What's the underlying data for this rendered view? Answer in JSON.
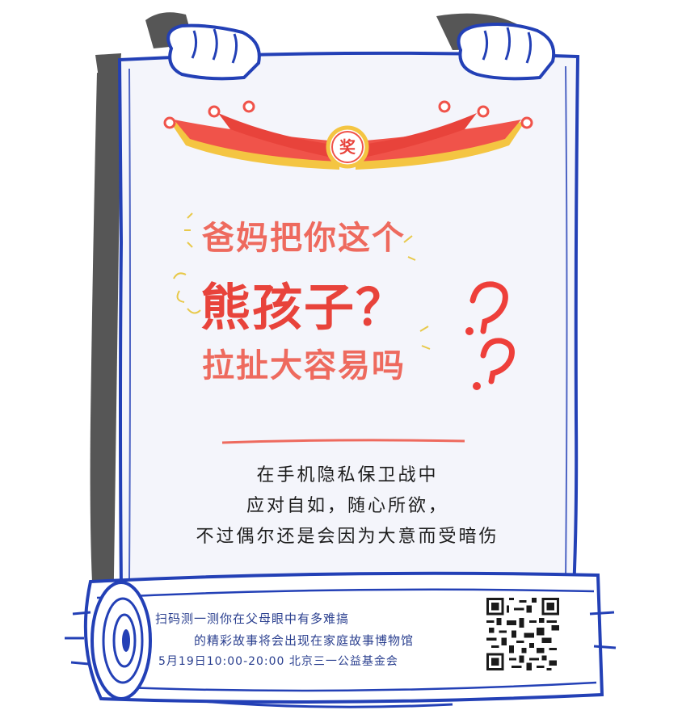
{
  "theme": {
    "accent": "#ee6a5e",
    "ribbon": "#f0534a",
    "ribbon_edge": "#f4c542",
    "frame": "#2340b6",
    "shadow": "#555555",
    "paper": "#f4f5fb",
    "body_text": "#1d1d1d",
    "footer_text": "#2a3f8f"
  },
  "badge": {
    "char": "奖"
  },
  "headline": {
    "line1": "爸妈把你这个",
    "line2": "熊孩子？",
    "line3": "拉扯大容易吗"
  },
  "body": {
    "line1": "在手机隐私保卫战中",
    "line2": "应对自如，随心所欲，",
    "line3": "不过偶尔还是会因为大意而受暗伤"
  },
  "footer": {
    "line1": "扫码测一测你在父母眼中有多难搞",
    "line2": "的精彩故事将会出现在家庭故事博物馆",
    "line3": "5月19日10:00-20:00 北京三一公益基金会"
  },
  "icons": {
    "qr": "qr-code-icon",
    "question": "question-mark-icon",
    "ribbon": "ribbon-icon",
    "hand": "hand-icon"
  }
}
